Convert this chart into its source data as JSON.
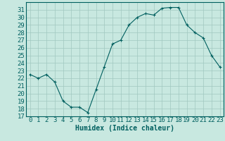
{
  "x": [
    0,
    1,
    2,
    3,
    4,
    5,
    6,
    7,
    8,
    9,
    10,
    11,
    12,
    13,
    14,
    15,
    16,
    17,
    18,
    19,
    20,
    21,
    22,
    23
  ],
  "y": [
    22.5,
    22.0,
    22.5,
    21.5,
    19.0,
    18.2,
    18.2,
    17.5,
    20.5,
    23.5,
    26.5,
    27.0,
    29.0,
    30.0,
    30.5,
    30.3,
    31.2,
    31.3,
    31.3,
    29.0,
    28.0,
    27.3,
    25.0,
    23.5
  ],
  "xlabel": "Humidex (Indice chaleur)",
  "ylim": [
    17,
    32
  ],
  "xlim": [
    -0.5,
    23.5
  ],
  "yticks": [
    17,
    18,
    19,
    20,
    21,
    22,
    23,
    24,
    25,
    26,
    27,
    28,
    29,
    30,
    31
  ],
  "xticks": [
    0,
    1,
    2,
    3,
    4,
    5,
    6,
    7,
    8,
    9,
    10,
    11,
    12,
    13,
    14,
    15,
    16,
    17,
    18,
    19,
    20,
    21,
    22,
    23
  ],
  "line_color": "#005f5f",
  "marker": "+",
  "bg_color": "#c8e8e0",
  "grid_color": "#a0c8c0",
  "label_fontsize": 7,
  "tick_fontsize": 6.5
}
